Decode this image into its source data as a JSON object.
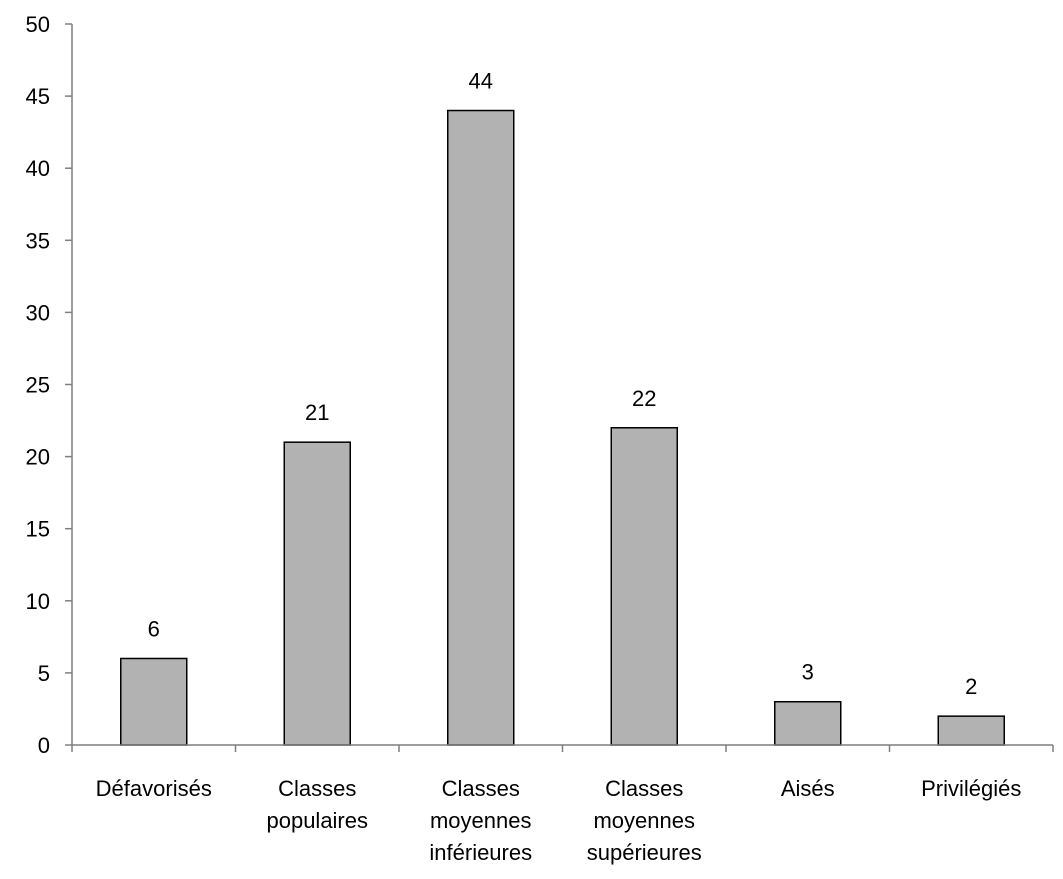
{
  "chart_data": {
    "type": "bar",
    "title": "",
    "xlabel": "",
    "ylabel": "",
    "categories": [
      [
        "Défavorisés"
      ],
      [
        "Classes",
        "populaires"
      ],
      [
        "Classes",
        "moyennes",
        "inférieures"
      ],
      [
        "Classes",
        "moyennes",
        "supérieures"
      ],
      [
        "Aisés"
      ],
      [
        "Privilégiés"
      ]
    ],
    "values": [
      6,
      21,
      44,
      22,
      3,
      2
    ],
    "data_labels": [
      "6",
      "21",
      "44",
      "22",
      "3",
      "2"
    ],
    "ylim": [
      0,
      50
    ],
    "yticks": [
      0,
      5,
      10,
      15,
      20,
      25,
      30,
      35,
      40,
      45,
      50
    ],
    "grid": false,
    "legend": "none",
    "colors": {
      "bar_fill": "#b2b2b2",
      "bar_stroke": "#000000",
      "axis": "#7f7f7f"
    }
  }
}
